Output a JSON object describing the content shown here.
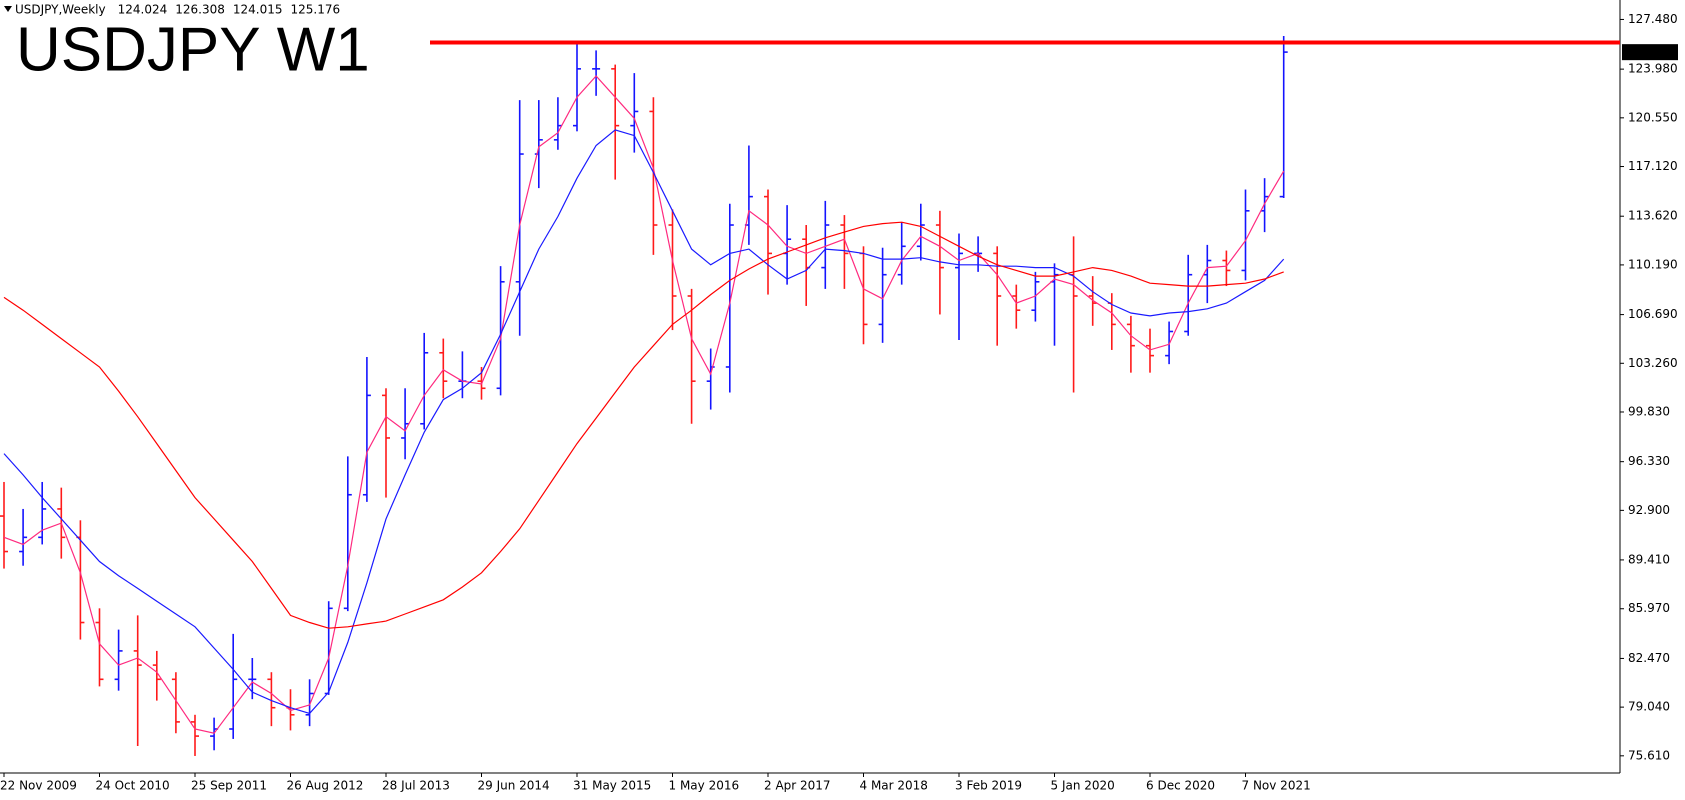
{
  "chart_data": {
    "type": "ohlc",
    "symbol": "USDJPY,Weekly",
    "header_values": [
      124.024,
      126.308,
      124.015,
      125.176
    ],
    "title": "USDJPY W1",
    "title_color": "#ff0000",
    "categories": [
      "22 Nov 2009",
      null,
      null,
      null,
      null,
      "24 Oct 2010",
      null,
      null,
      null,
      null,
      "25 Sep 2011",
      null,
      null,
      null,
      null,
      "26 Aug 2012",
      null,
      null,
      null,
      null,
      "28 Jul 2013",
      null,
      null,
      null,
      null,
      "29 Jun 2014",
      null,
      null,
      null,
      null,
      "31 May 2015",
      null,
      null,
      null,
      null,
      "1 May 2016",
      null,
      null,
      null,
      null,
      "2 Apr 2017",
      null,
      null,
      null,
      null,
      "4 Mar 2018",
      null,
      null,
      null,
      null,
      "3 Feb 2019",
      null,
      null,
      null,
      null,
      "5 Jan 2020",
      null,
      null,
      null,
      null,
      "6 Dec 2020",
      null,
      null,
      null,
      null,
      "7 Nov 2021",
      null,
      null
    ],
    "open": [
      92.5,
      90,
      91,
      93,
      91,
      85,
      81,
      83,
      82,
      81,
      78,
      77,
      77.5,
      81,
      81,
      79,
      78.5,
      80,
      86,
      94,
      101,
      98,
      99,
      104,
      102,
      102,
      101.5,
      109,
      118,
      119,
      120,
      124,
      124,
      120,
      121,
      113,
      108,
      102,
      103,
      113,
      115,
      111,
      112,
      110,
      113,
      111,
      106,
      109.5,
      111.5,
      113,
      110,
      111,
      111,
      108,
      107,
      109,
      109.5,
      108,
      107.5,
      106,
      104.5,
      103.8,
      105.5,
      109.5,
      110.5,
      109.8,
      114,
      115
    ],
    "high": [
      94.9,
      93,
      94.9,
      94.5,
      92.2,
      86,
      84.5,
      85.5,
      83,
      81.5,
      78.5,
      78.3,
      84.2,
      82.5,
      81.5,
      80.3,
      81,
      86.5,
      96.7,
      103.7,
      101.5,
      101.5,
      105.4,
      105,
      104.1,
      103,
      110.1,
      121.8,
      121.8,
      122,
      125.86,
      125.3,
      124.3,
      123.7,
      122,
      114.1,
      108.5,
      104.3,
      114.5,
      118.6,
      115.5,
      114.4,
      113,
      114.7,
      113.7,
      111.5,
      111.4,
      113.2,
      114.5,
      114,
      112.4,
      112.2,
      111.5,
      108.8,
      109.7,
      110.3,
      112.2,
      109.4,
      108.2,
      106.6,
      105.7,
      106.2,
      110.9,
      111.6,
      111.2,
      115.5,
      116.3,
      126.31
    ],
    "low": [
      88.8,
      89,
      90.5,
      89.5,
      83.8,
      80.5,
      80.2,
      76.3,
      79.5,
      77.2,
      75.6,
      76,
      76.8,
      79.6,
      77.7,
      77.4,
      77.7,
      79.9,
      85.8,
      93.5,
      93.8,
      96.5,
      98.6,
      100.8,
      100.8,
      100.7,
      101,
      105.2,
      115.6,
      118.3,
      119.6,
      122.1,
      116.2,
      118.1,
      110.9,
      105.6,
      99,
      100,
      101.2,
      111.6,
      108.1,
      108.8,
      107.3,
      108.5,
      108.5,
      104.6,
      104.7,
      108.8,
      110.5,
      106.7,
      104.9,
      109.7,
      104.5,
      105.7,
      106.2,
      104.5,
      101.2,
      105.9,
      104.2,
      102.6,
      102.6,
      103.2,
      105.2,
      107.5,
      108.7,
      109.1,
      112.5,
      114.9
    ],
    "close": [
      90,
      91,
      93,
      91,
      85,
      81,
      83,
      82,
      81,
      78,
      77,
      77.5,
      81,
      81,
      79,
      78.5,
      80,
      86,
      94,
      101,
      98,
      99,
      104,
      102,
      102,
      101.5,
      109,
      118,
      119,
      120,
      124,
      124,
      120,
      121,
      113,
      108,
      102,
      103,
      113,
      115,
      111,
      112,
      110,
      113,
      111,
      106,
      109.5,
      111.5,
      113,
      110,
      111,
      111,
      108,
      107,
      109,
      109.5,
      108,
      107.5,
      106,
      104.5,
      103.8,
      105.5,
      109.5,
      110.5,
      109.8,
      114,
      115,
      125.18
    ],
    "up_color": "#1414ff",
    "down_color": "#ff1a1a",
    "moving_averages": [
      {
        "color": "#ff2a7f",
        "values": [
          91,
          90.5,
          91.5,
          92,
          88.5,
          83.5,
          82,
          82.5,
          81.5,
          79.5,
          77.5,
          77.2,
          79,
          80.8,
          80,
          78.8,
          79.2,
          82.5,
          89,
          97,
          99.5,
          98.5,
          101,
          102.8,
          102,
          101.8,
          105,
          113,
          118.5,
          119.5,
          122,
          123.5,
          122,
          120.5,
          117,
          110.5,
          105,
          102.5,
          107.5,
          114,
          113,
          111.5,
          111,
          111.5,
          112,
          108.5,
          107.8,
          110.5,
          112.2,
          111.5,
          110.5,
          111,
          109.5,
          107.5,
          108,
          109.2,
          108.8,
          107.7,
          106.8,
          105.2,
          104.2,
          104.6,
          107.5,
          110,
          110.1,
          111.9,
          114.5,
          116.8
        ]
      },
      {
        "color": "#1a1aff",
        "values": [
          96.9,
          95.4,
          93.8,
          92.3,
          90.8,
          89.3,
          88.3,
          87.4,
          86.5,
          85.6,
          84.7,
          83.2,
          81.7,
          80.1,
          79.5,
          79,
          78.6,
          80.1,
          83.6,
          87.8,
          92.3,
          95.4,
          98.4,
          100.7,
          101.5,
          102.6,
          105.3,
          108.3,
          111.3,
          113.6,
          116.3,
          118.6,
          119.7,
          119.3,
          116.7,
          114,
          111.3,
          110.2,
          111,
          111.3,
          110.2,
          109.2,
          109.8,
          111.3,
          111.2,
          111,
          110.6,
          110.6,
          110.7,
          110.4,
          110.2,
          110.2,
          110.1,
          110.1,
          110,
          110,
          109.4,
          108.3,
          107.4,
          106.8,
          106.6,
          106.8,
          106.9,
          107.1,
          107.5,
          108.3,
          109.1,
          110.6
        ]
      },
      {
        "color": "#ff0000",
        "values": [
          107.9,
          107,
          106,
          105,
          104,
          103,
          101.3,
          99.5,
          97.6,
          95.7,
          93.8,
          92.3,
          90.8,
          89.3,
          87.4,
          85.5,
          85,
          84.6,
          84.7,
          84.9,
          85.1,
          85.6,
          86.1,
          86.6,
          87.5,
          88.5,
          90,
          91.6,
          93.6,
          95.6,
          97.6,
          99.4,
          101.2,
          103,
          104.5,
          106,
          107,
          108.1,
          109.1,
          109.9,
          110.6,
          111.1,
          111.6,
          112.1,
          112.5,
          112.9,
          113.1,
          113.2,
          112.9,
          112.2,
          111.5,
          110.8,
          110.2,
          109.8,
          109.4,
          109.4,
          109.7,
          110,
          109.8,
          109.4,
          108.9,
          108.8,
          108.7,
          108.7,
          108.8,
          108.9,
          109.2,
          109.7
        ]
      }
    ],
    "resistance_level": 125.86,
    "resistance_color": "#ff0000",
    "last_price": 125.176,
    "ylim": [
      74.4,
      128.85
    ],
    "yticks": [
      {
        "value": 127.48,
        "label": "127.480"
      },
      {
        "value": 123.98,
        "label": "123.980"
      },
      {
        "value": 120.55,
        "label": "120.550"
      },
      {
        "value": 117.12,
        "label": "117.120"
      },
      {
        "value": 113.62,
        "label": "113.620"
      },
      {
        "value": 110.19,
        "label": "110.190"
      },
      {
        "value": 106.69,
        "label": "106.690"
      },
      {
        "value": 103.26,
        "label": "103.260"
      },
      {
        "value": 99.83,
        "label": "99.830"
      },
      {
        "value": 96.33,
        "label": "96.330"
      },
      {
        "value": 92.9,
        "label": "92.900"
      },
      {
        "value": 89.41,
        "label": "89.410"
      },
      {
        "value": 85.97,
        "label": "85.970"
      },
      {
        "value": 82.47,
        "label": "82.470"
      },
      {
        "value": 79.04,
        "label": "79.040"
      },
      {
        "value": 75.61,
        "label": "75.610"
      }
    ],
    "grid": false
  }
}
